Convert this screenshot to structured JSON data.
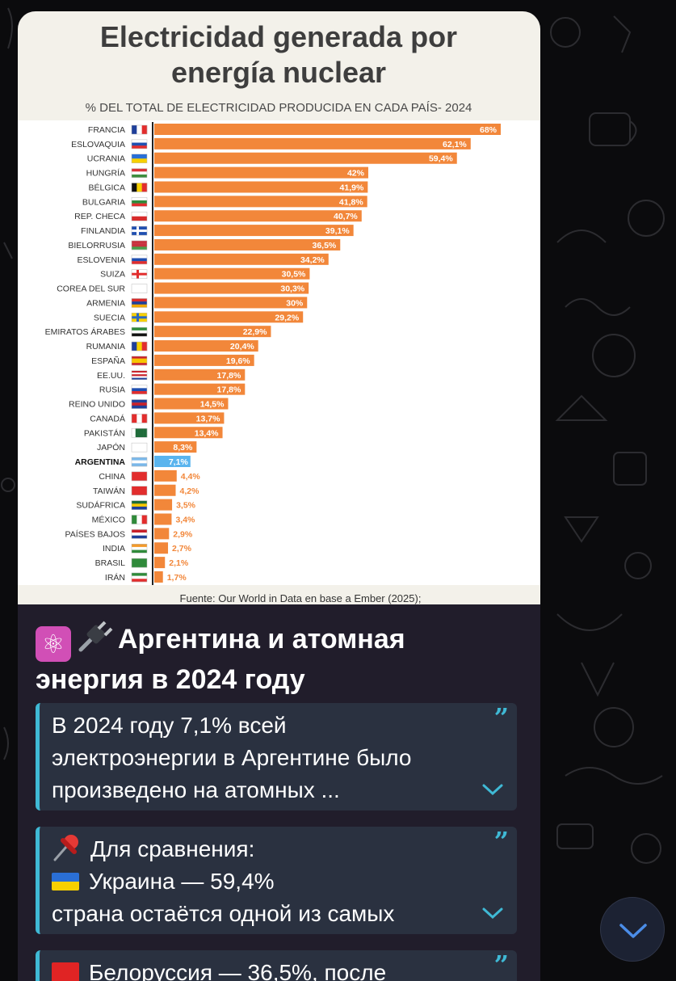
{
  "chart_data": {
    "type": "bar",
    "title_line1": "Electricidad generada por",
    "title_line2": "energía nuclear",
    "subtitle": "% DEL TOTAL DE ELECTRICIDAD PRODUCIDA EN CADA PAÍS- 2024",
    "source": "Fuente: Our World in Data en base a Ember (2025);",
    "orientation": "horizontal",
    "highlight": "ARGENTINA",
    "xlim": [
      0,
      68
    ],
    "categories": [
      "FRANCIA",
      "ESLOVAQUIA",
      "UCRANIA",
      "HUNGRÍA",
      "BÉLGICA",
      "BULGARIA",
      "REP. CHECA",
      "FINLANDIA",
      "BIELORRUSIA",
      "ESLOVENIA",
      "SUIZA",
      "COREA DEL SUR",
      "ARMENIA",
      "SUECIA",
      "EMIRATOS ÁRABES",
      "RUMANIA",
      "ESPAÑA",
      "EE.UU.",
      "RUSIA",
      "REINO UNIDO",
      "CANADÁ",
      "PAKISTÁN",
      "JAPÓN",
      "ARGENTINA",
      "CHINA",
      "TAIWÁN",
      "SUDÁFRICA",
      "MÉXICO",
      "PAÍSES BAJOS",
      "INDIA",
      "BRASIL",
      "IRÁN"
    ],
    "values": [
      68,
      62.1,
      59.4,
      42,
      41.9,
      41.8,
      40.7,
      39.1,
      36.5,
      34.2,
      30.5,
      30.3,
      30,
      29.2,
      22.9,
      20.4,
      19.6,
      17.8,
      17.8,
      14.5,
      13.7,
      13.4,
      8.3,
      7.1,
      4.4,
      4.2,
      3.5,
      3.4,
      2.9,
      2.7,
      2.1,
      1.7
    ],
    "labels": [
      "68%",
      "62,1%",
      "59,4%",
      "42%",
      "41,9%",
      "41,8%",
      "40,7%",
      "39,1%",
      "36,5%",
      "34,2%",
      "30,5%",
      "30,3%",
      "30%",
      "29,2%",
      "22,9%",
      "20,4%",
      "19,6%",
      "17,8%",
      "17,8%",
      "14,5%",
      "13,7%",
      "13,4%",
      "8,3%",
      "7,1%",
      "4,4%",
      "4,2%",
      "3,5%",
      "3,4%",
      "2,9%",
      "2,7%",
      "2,1%",
      "1,7%"
    ],
    "flags": [
      {
        "t": "v",
        "c": [
          "#1f3f9a",
          "#ffffff",
          "#e22d2d"
        ]
      },
      {
        "t": "h",
        "c": [
          "#ffffff",
          "#1f4fb0",
          "#e22d2d"
        ]
      },
      {
        "t": "h",
        "c": [
          "#2a6fd6",
          "#f7d000"
        ]
      },
      {
        "t": "h",
        "c": [
          "#d8343a",
          "#ffffff",
          "#3e8e3e"
        ]
      },
      {
        "t": "v",
        "c": [
          "#111111",
          "#f7d000",
          "#e22d2d"
        ]
      },
      {
        "t": "h",
        "c": [
          "#ffffff",
          "#2f8a3a",
          "#e22d2d"
        ]
      },
      {
        "t": "h",
        "c": [
          "#ffffff",
          "#d82b2b"
        ]
      },
      {
        "t": "cross",
        "c": [
          "#ffffff",
          "#1f4fb0"
        ]
      },
      {
        "t": "h",
        "c": [
          "#c8313e",
          "#c8313e",
          "#4a9e4a"
        ]
      },
      {
        "t": "h",
        "c": [
          "#ffffff",
          "#1f4fb0",
          "#e22d2d"
        ]
      },
      {
        "t": "cross",
        "c": [
          "#e22d2d",
          "#ffffff"
        ]
      },
      {
        "t": "h",
        "c": [
          "#ffffff"
        ]
      },
      {
        "t": "h",
        "c": [
          "#d82b2b",
          "#1f3f9a",
          "#f2a800"
        ]
      },
      {
        "t": "cross",
        "c": [
          "#2a68c0",
          "#f7d000"
        ]
      },
      {
        "t": "h",
        "c": [
          "#2f8a3a",
          "#ffffff",
          "#111111"
        ]
      },
      {
        "t": "v",
        "c": [
          "#1f3f9a",
          "#f7d000",
          "#e22d2d"
        ]
      },
      {
        "t": "h",
        "c": [
          "#c8202a",
          "#f7c600",
          "#f7c600",
          "#c8202a"
        ]
      },
      {
        "t": "h",
        "c": [
          "#c8202a",
          "#ffffff",
          "#c8202a",
          "#ffffff",
          "#1f3f9a"
        ]
      },
      {
        "t": "h",
        "c": [
          "#ffffff",
          "#1f4fb0",
          "#e22d2d"
        ]
      },
      {
        "t": "h",
        "c": [
          "#1f3f9a",
          "#c8202a",
          "#1f3f9a"
        ]
      },
      {
        "t": "v",
        "c": [
          "#e22d2d",
          "#ffffff",
          "#e22d2d"
        ]
      },
      {
        "t": "v",
        "c": [
          "#ffffff",
          "#1f6b3a",
          "#1f6b3a",
          "#1f6b3a"
        ]
      },
      {
        "t": "h",
        "c": [
          "#ffffff"
        ]
      },
      {
        "t": "h",
        "c": [
          "#7ab8ea",
          "#ffffff",
          "#7ab8ea"
        ]
      },
      {
        "t": "h",
        "c": [
          "#e22d2d"
        ]
      },
      {
        "t": "h",
        "c": [
          "#e22d2d"
        ]
      },
      {
        "t": "h",
        "c": [
          "#1f6b3a",
          "#f7c600",
          "#1f3f9a"
        ]
      },
      {
        "t": "v",
        "c": [
          "#2f8a3a",
          "#ffffff",
          "#e22d2d"
        ]
      },
      {
        "t": "h",
        "c": [
          "#c8202a",
          "#ffffff",
          "#1f3f9a"
        ]
      },
      {
        "t": "h",
        "c": [
          "#f39a2a",
          "#ffffff",
          "#2f8a3a"
        ]
      },
      {
        "t": "h",
        "c": [
          "#2f8a3a"
        ]
      },
      {
        "t": "h",
        "c": [
          "#2f8a3a",
          "#ffffff",
          "#e22d2d"
        ]
      }
    ]
  },
  "colors": {
    "bar": "#f2873a",
    "highlight_bar": "#59b4ee",
    "quote_accent": "#3fb9d5"
  },
  "message": {
    "emoji1": "⚛",
    "title_line1": "Аргентина и атомная",
    "title_line2": "энергия в 2024 году"
  },
  "quotes": [
    {
      "lines": [
        "В 2024 году 7,1% всей",
        "электроэнергии в Аргентине было",
        "произведено на атомных ..."
      ],
      "icon": "chevron-down-icon"
    },
    {
      "lines": [
        "Для сравнения:",
        "Украина — 59,4%",
        "страна остаётся одной из самых"
      ],
      "icon": "chevron-down-icon"
    },
    {
      "lines": [
        "Белоруссия — 36,5%, после"
      ],
      "icon": "chevron-down-icon"
    }
  ],
  "quote_mark": "”"
}
